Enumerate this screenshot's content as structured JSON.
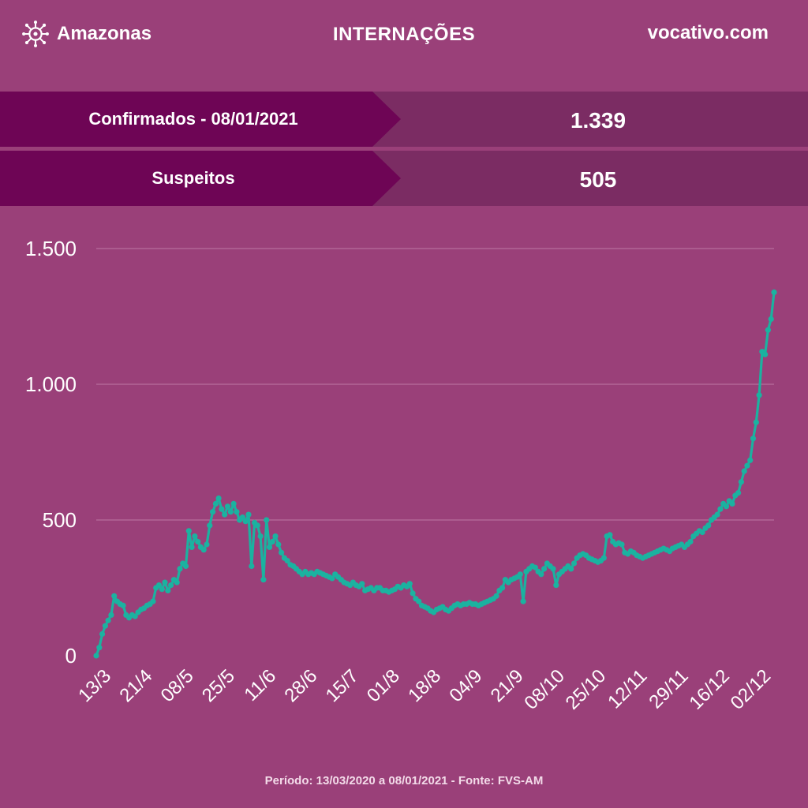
{
  "header": {
    "brand_name": "Amazonas",
    "title": "INTERNAÇÕES",
    "site": "vocativo.com"
  },
  "stats": {
    "confirmed_label": "Confirmados - 08/01/2021",
    "confirmed_value": "1.339",
    "suspected_label": "Suspeitos",
    "suspected_value": "505"
  },
  "footer": "Período: 13/03/2020 a 08/01/2021 - Fonte: FVS-AM",
  "colors": {
    "background": "#9a4079",
    "label_band": "#6e0555",
    "value_band": "#7b2c63",
    "line": "#1bb2a0",
    "grid": "#c98bb4"
  },
  "chart_data": {
    "type": "line",
    "title": "INTERNAÇÕES",
    "ylim": [
      0,
      1500
    ],
    "yticks": [
      0,
      500,
      1000,
      1500
    ],
    "ytick_labels": [
      "0",
      "500",
      "1.000",
      "1.500"
    ],
    "xtick_labels": [
      "13/3",
      "21/4",
      "08/5",
      "25/5",
      "11/6",
      "28/6",
      "15/7",
      "01/8",
      "18/8",
      "04/9",
      "21/9",
      "08/10",
      "25/10",
      "12/11",
      "29/11",
      "16/12",
      "02/12"
    ],
    "grid": true,
    "series": [
      {
        "values": [
          0,
          30,
          80,
          110,
          130,
          150,
          220,
          200,
          190,
          185,
          150,
          140,
          150,
          145,
          160,
          170,
          175,
          185,
          190,
          200,
          250,
          260,
          245,
          270,
          240,
          260,
          280,
          270,
          320,
          340,
          330,
          460,
          400,
          440,
          420,
          400,
          390,
          410,
          480,
          530,
          560,
          580,
          540,
          520,
          550,
          530,
          560,
          530,
          500,
          510,
          495,
          520,
          330,
          490,
          480,
          440,
          280,
          500,
          400,
          420,
          440,
          410,
          380,
          360,
          350,
          335,
          330,
          320,
          310,
          300,
          310,
          300,
          305,
          300,
          310,
          305,
          300,
          295,
          290,
          285,
          300,
          290,
          280,
          270,
          265,
          260,
          270,
          260,
          255,
          265,
          240,
          245,
          250,
          240,
          250,
          250,
          240,
          240,
          235,
          240,
          245,
          255,
          250,
          260,
          255,
          265,
          230,
          210,
          200,
          185,
          180,
          175,
          165,
          160,
          170,
          175,
          180,
          170,
          165,
          175,
          185,
          190,
          185,
          190,
          190,
          195,
          190,
          190,
          185,
          190,
          195,
          200,
          205,
          210,
          220,
          240,
          250,
          280,
          270,
          280,
          285,
          290,
          300,
          200,
          310,
          320,
          330,
          325,
          310,
          300,
          320,
          340,
          330,
          320,
          260,
          300,
          310,
          320,
          330,
          320,
          340,
          360,
          370,
          375,
          370,
          360,
          355,
          350,
          345,
          350,
          360,
          440,
          445,
          420,
          410,
          415,
          410,
          380,
          375,
          385,
          380,
          370,
          365,
          360,
          365,
          370,
          375,
          380,
          385,
          390,
          395,
          390,
          385,
          395,
          400,
          405,
          410,
          400,
          410,
          420,
          440,
          450,
          460,
          455,
          470,
          480,
          500,
          510,
          520,
          540,
          560,
          550,
          570,
          560,
          590,
          600,
          640,
          680,
          700,
          720,
          800,
          860,
          960,
          1120,
          1110,
          1200,
          1240,
          1339
        ]
      }
    ]
  }
}
